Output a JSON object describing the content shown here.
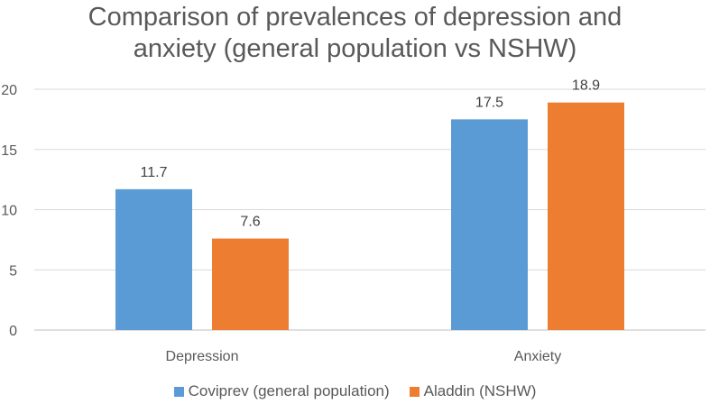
{
  "chart_data": {
    "type": "bar",
    "title_lines": [
      "Comparison of prevalences of depression and",
      "anxiety (general population vs NSHW)"
    ],
    "categories": [
      "Depression",
      "Anxiety"
    ],
    "series": [
      {
        "name": "Coviprev (general population)",
        "values": [
          11.7,
          17.5
        ],
        "color": "#5B9BD5"
      },
      {
        "name": "Aladdin (NSHW)",
        "values": [
          7.6,
          18.9
        ],
        "color": "#ED7D31"
      }
    ],
    "data_labels": [
      [
        "11.7",
        "17.5"
      ],
      [
        "7.6",
        "18.9"
      ]
    ],
    "yticks": [
      "0",
      "5",
      "10",
      "15",
      "20"
    ],
    "ylim": [
      0,
      20
    ],
    "grid": true,
    "legend_position": "bottom"
  }
}
